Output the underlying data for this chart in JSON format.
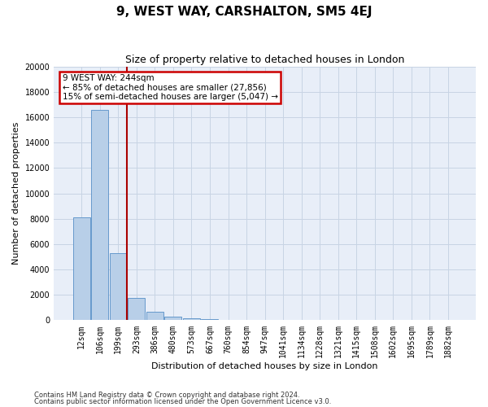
{
  "title": "9, WEST WAY, CARSHALTON, SM5 4EJ",
  "subtitle": "Size of property relative to detached houses in London",
  "xlabel": "Distribution of detached houses by size in London",
  "ylabel": "Number of detached properties",
  "bin_labels": [
    "12sqm",
    "106sqm",
    "199sqm",
    "293sqm",
    "386sqm",
    "480sqm",
    "573sqm",
    "667sqm",
    "760sqm",
    "854sqm",
    "947sqm",
    "1041sqm",
    "1134sqm",
    "1228sqm",
    "1321sqm",
    "1415sqm",
    "1508sqm",
    "1602sqm",
    "1695sqm",
    "1789sqm",
    "1882sqm"
  ],
  "bar_heights": [
    8100,
    16600,
    5300,
    1750,
    700,
    300,
    150,
    100,
    50,
    0,
    0,
    0,
    0,
    0,
    0,
    0,
    0,
    0,
    0,
    0,
    0
  ],
  "bar_color": "#b8cfe8",
  "bar_edge_color": "#6699cc",
  "grid_color": "#c8d4e4",
  "background_color": "#e8eef8",
  "vline_color": "#aa0000",
  "annotation_line1": "9 WEST WAY: 244sqm",
  "annotation_line2": "← 85% of detached houses are smaller (27,856)",
  "annotation_line3": "15% of semi-detached houses are larger (5,047) →",
  "annotation_box_color": "#cc0000",
  "ylim": [
    0,
    20000
  ],
  "yticks": [
    0,
    2000,
    4000,
    6000,
    8000,
    10000,
    12000,
    14000,
    16000,
    18000,
    20000
  ],
  "footnote1": "Contains HM Land Registry data © Crown copyright and database right 2024.",
  "footnote2": "Contains public sector information licensed under the Open Government Licence v3.0.",
  "title_fontsize": 11,
  "subtitle_fontsize": 9,
  "tick_fontsize": 7,
  "ylabel_fontsize": 8,
  "xlabel_fontsize": 8,
  "annotation_fontsize": 7.5,
  "footnote_fontsize": 6
}
